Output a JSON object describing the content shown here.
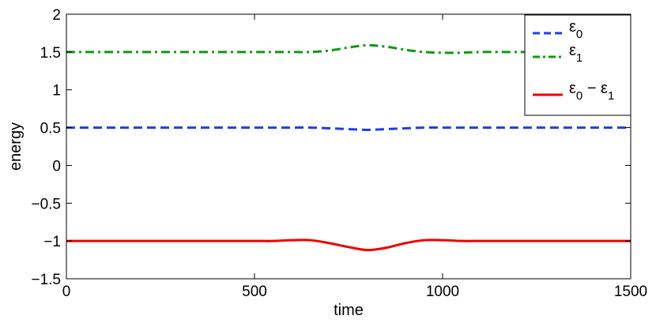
{
  "chart_data": {
    "type": "line",
    "xlabel": "time",
    "ylabel": "energy",
    "xlim": [
      0,
      1500
    ],
    "ylim": [
      -1.5,
      2
    ],
    "xticks": [
      0,
      500,
      1000,
      1500
    ],
    "xtick_labels": [
      "0",
      "500",
      "1000",
      "1500"
    ],
    "yticks": [
      -1.5,
      -1,
      -0.5,
      0,
      0.5,
      1,
      1.5,
      2
    ],
    "ytick_labels": [
      "−1.5",
      "−1",
      "−0.5",
      "0",
      "0.5",
      "1",
      "1.5",
      "2"
    ],
    "grid": false,
    "legend_position": "top-right",
    "x": [
      0,
      100,
      200,
      300,
      400,
      500,
      550,
      600,
      650,
      700,
      750,
      800,
      850,
      900,
      950,
      1000,
      1050,
      1100,
      1200,
      1300,
      1400,
      1500
    ],
    "series": [
      {
        "id": "e0",
        "color": "#1f3fe0",
        "dash": "dashed",
        "legend": {
          "base": "ε",
          "sub": "0"
        },
        "values": [
          0.5,
          0.5,
          0.5,
          0.5,
          0.5,
          0.5,
          0.5,
          0.5,
          0.5,
          0.49,
          0.48,
          0.47,
          0.48,
          0.49,
          0.5,
          0.5,
          0.5,
          0.5,
          0.5,
          0.5,
          0.5,
          0.5
        ]
      },
      {
        "id": "e1",
        "color": "#119911",
        "dash": "dashdot",
        "legend": {
          "base": "ε",
          "sub": "1"
        },
        "values": [
          1.5,
          1.5,
          1.5,
          1.5,
          1.5,
          1.5,
          1.5,
          1.5,
          1.5,
          1.52,
          1.56,
          1.59,
          1.57,
          1.53,
          1.5,
          1.49,
          1.49,
          1.5,
          1.5,
          1.5,
          1.5,
          1.5
        ]
      },
      {
        "id": "diff",
        "color": "#ee0000",
        "dash": "solid",
        "legend": {
          "base": "ε",
          "sub": "0",
          "mid": " − ε",
          "sub2": "1"
        },
        "values": [
          -1.0,
          -1.0,
          -1.0,
          -1.0,
          -1.0,
          -1.0,
          -1.0,
          -0.99,
          -0.99,
          -1.03,
          -1.08,
          -1.12,
          -1.09,
          -1.03,
          -0.99,
          -0.99,
          -1.0,
          -1.0,
          -1.0,
          -1.0,
          -1.0,
          -1.0
        ]
      }
    ]
  }
}
